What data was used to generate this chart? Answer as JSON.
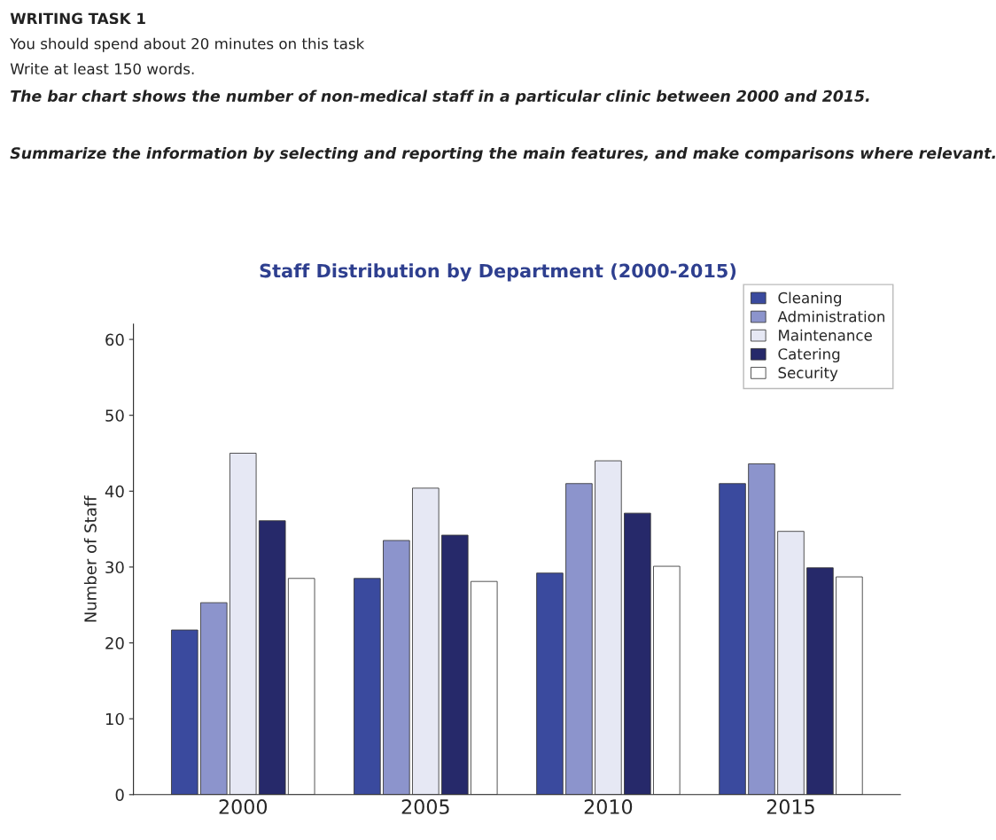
{
  "chart_data": {
    "type": "bar",
    "title": "Staff Distribution by Department (2000-2015)",
    "ylabel": "Number of Staff",
    "annotations": [
      "WRITING TASK 1",
      "You should spend about 20 minutes on this task",
      "Write at least 150 words.",
      "The bar chart shows the number of non-medical staff in a particular clinic between 2000 and 2015.",
      "Summarize the information by selecting and reporting the main features, and make comparisons where relevant."
    ],
    "categories": [
      "2000",
      "2005",
      "2010",
      "2015"
    ],
    "series": [
      {
        "name": "Cleaning",
        "color": "#3a4a9e",
        "values": [
          21.7,
          28.5,
          29.2,
          41
        ]
      },
      {
        "name": "Administration",
        "color": "#8c94cc",
        "values": [
          25.3,
          33.5,
          41,
          43.6
        ]
      },
      {
        "name": "Maintenance",
        "color": "#e6e8f4",
        "values": [
          45,
          40.4,
          44,
          34.7
        ]
      },
      {
        "name": "Catering",
        "color": "#26296a",
        "values": [
          36.1,
          34.2,
          37.1,
          29.9
        ]
      },
      {
        "name": "Security",
        "color": "#ffffff",
        "values": [
          28.5,
          28.1,
          30.1,
          28.7
        ]
      }
    ],
    "ylim": [
      0,
      62
    ],
    "yticks": [
      0,
      10,
      20,
      30,
      40,
      50,
      60
    ],
    "grid": false,
    "legend": "top right"
  }
}
